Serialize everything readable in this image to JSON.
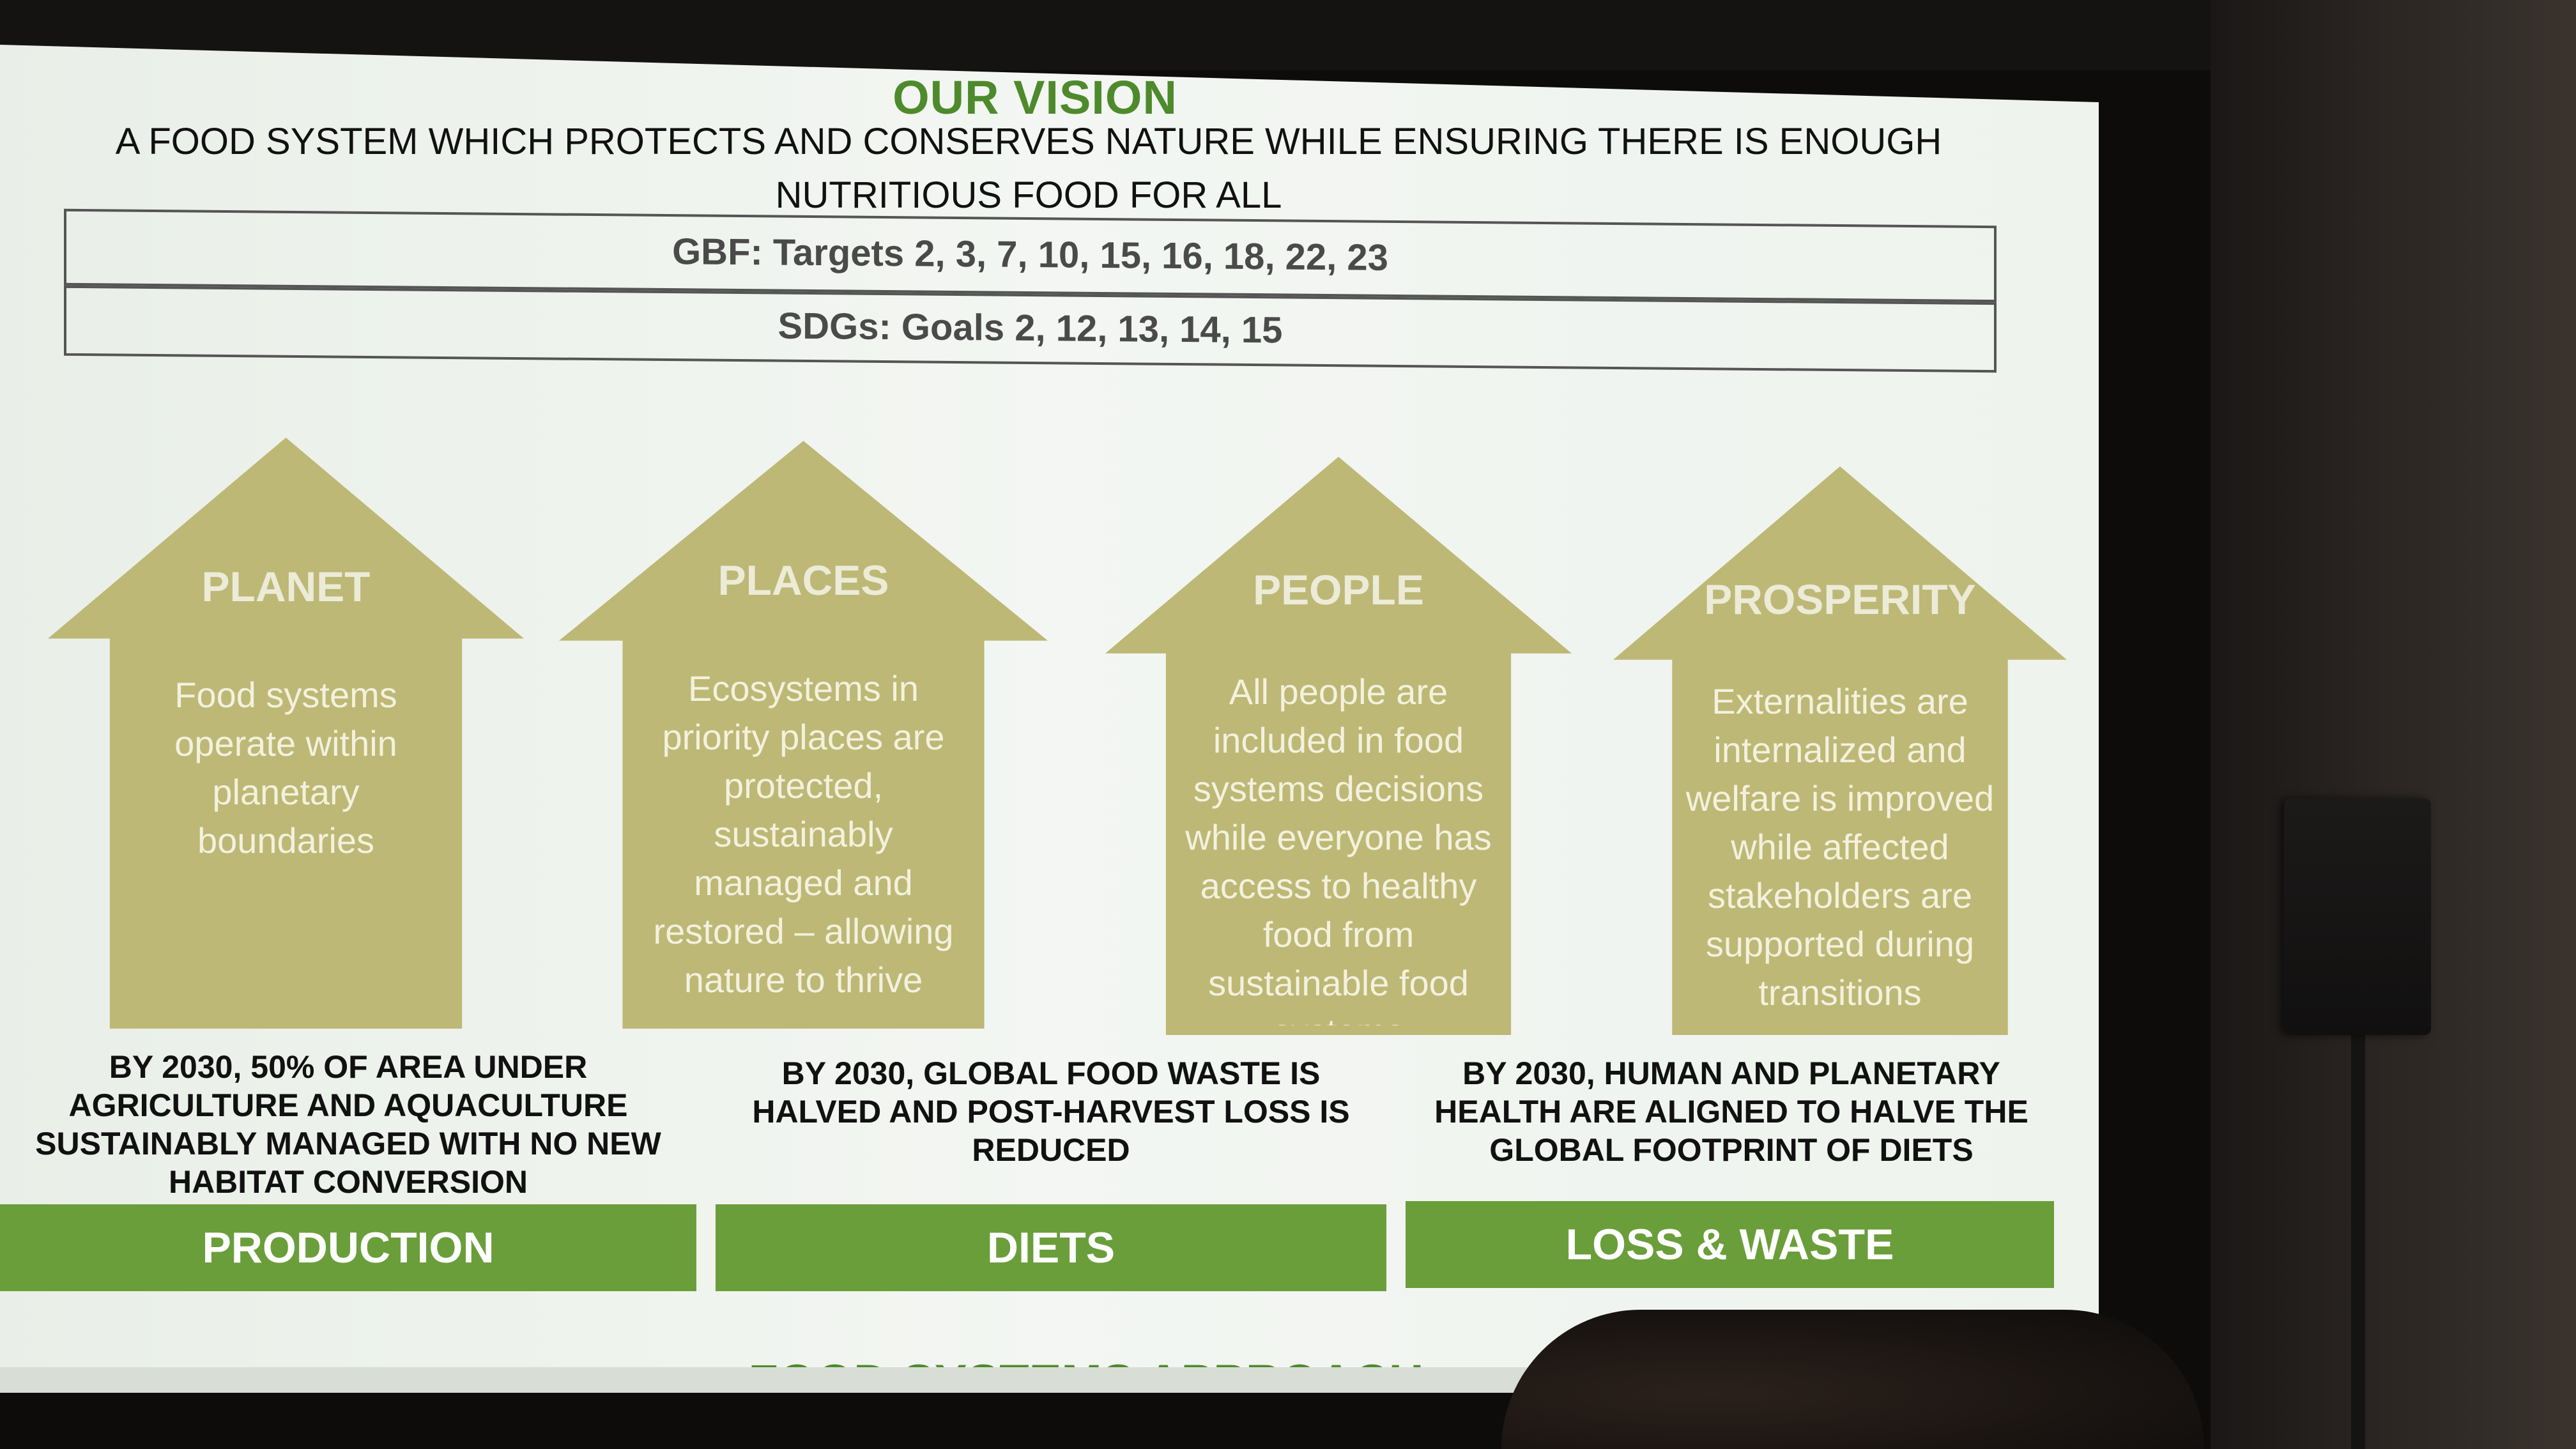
{
  "slide": {
    "title": "OUR VISION",
    "subtitle": "A FOOD SYSTEM WHICH PROTECTS AND CONSERVES NATURE WHILE ENSURING THERE IS ENOUGH NUTRITIOUS FOOD FOR ALL",
    "gbf": "GBF: Targets 2, 3, 7, 10, 15, 16, 18, 22, 23",
    "sdgs": "SDGs: Goals 2, 12, 13, 14, 15",
    "pillars": [
      {
        "title": "PLANET",
        "text": "Food systems operate within planetary boundaries"
      },
      {
        "title": "PLACES",
        "text": "Ecosystems in priority places are protected, sustainably managed and restored – allowing nature to thrive"
      },
      {
        "title": "PEOPLE",
        "text": "All people are included in food systems decisions while everyone has access to healthy food from sustainable food systems"
      },
      {
        "title": "PROSPERITY",
        "text": "Externalities are internalized and welfare is improved while affected stakeholders are supported during transitions"
      }
    ],
    "goals": [
      {
        "text": "BY 2030, 50% OF AREA UNDER AGRICULTURE AND AQUACULTURE SUSTAINABLY MANAGED WITH NO NEW HABITAT CONVERSION",
        "bar": "PRODUCTION"
      },
      {
        "text": "BY 2030, GLOBAL FOOD WASTE IS HALVED AND POST-HARVEST LOSS IS REDUCED",
        "bar": "DIETS"
      },
      {
        "text": "BY 2030, HUMAN AND PLANETARY HEALTH ARE ALIGNED TO HALVE THE GLOBAL FOOTPRINT OF DIETS",
        "bar": "LOSS & WASTE"
      }
    ],
    "footer": "FOOD SYSTEMS APPROACH"
  },
  "colors": {
    "accent_green": "#6a9e3a",
    "title_green": "#4e8a2c",
    "arrow_khaki": "#bdb875",
    "screen_bg": "#eef3ee"
  }
}
